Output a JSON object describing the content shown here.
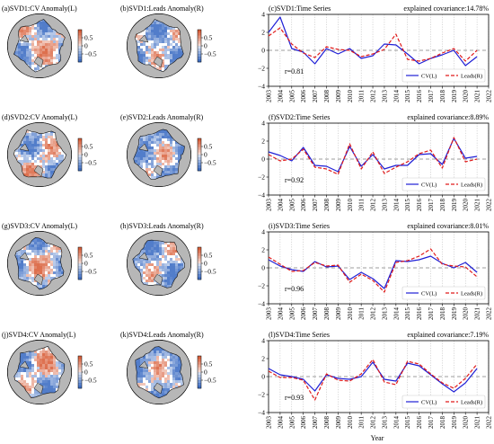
{
  "figure": {
    "xlabel": "Year",
    "colorbar_ticks": [
      "0.5",
      "0",
      "−0.5"
    ],
    "colors": {
      "cv_line": "#1f1fd6",
      "leads_line": "#e01a1a",
      "land": "#b7b7b7",
      "pos": "#d9603b",
      "neg": "#3f6fc4",
      "zero_line": "#7f7f7f"
    }
  },
  "rows": [
    {
      "map_cv_title": "(a)SVD1:CV Anomaly(L)",
      "map_leads_title": "(b)SVD1:Leads Anomaly(R)",
      "ts_title": "(c)SVD1:Time Series",
      "covariance": "explained covariance:14.78%",
      "r_label": "r=0.81"
    },
    {
      "map_cv_title": "(d)SVD2:CV Anomaly(L)",
      "map_leads_title": "(e)SVD2:Leads Anomaly(R)",
      "ts_title": "(f)SVD2:Time Series",
      "covariance": "explained covariance:8.89%",
      "r_label": "r=0.92"
    },
    {
      "map_cv_title": "(g)SVD3:CV Anomaly(L)",
      "map_leads_title": "(h)SVD3:Leads Anomaly(R)",
      "ts_title": "(i)SVD3:Time Series",
      "covariance": "explained covariance:8.01%",
      "r_label": "r=0.96"
    },
    {
      "map_cv_title": "(j)SVD4:CV Anomaly(L)",
      "map_leads_title": "(k)SVD4:Leads Anomaly(R)",
      "ts_title": "(l)SVD4:Time Series",
      "covariance": "explained covariance:7.19%",
      "r_label": "r=0.93"
    }
  ],
  "chart_data": [
    {
      "type": "line",
      "title": "(c)SVD1:Time Series",
      "x": [
        2003,
        2004,
        2005,
        2006,
        2007,
        2008,
        2009,
        2010,
        2011,
        2012,
        2013,
        2014,
        2015,
        2016,
        2017,
        2018,
        2019,
        2020,
        2021
      ],
      "xticks": [
        "2003",
        "2004",
        "2005",
        "2006",
        "2007",
        "2008",
        "2009",
        "2010",
        "2011",
        "2012",
        "2013",
        "2014",
        "2015",
        "2016",
        "2017",
        "2018",
        "2019",
        "2020",
        "2021",
        "2022"
      ],
      "ylim": [
        -4,
        4
      ],
      "yticks": [
        -4,
        -2,
        0,
        2,
        4
      ],
      "xlabel": "",
      "series": [
        {
          "name": "CV(L)",
          "values": [
            2.0,
            3.7,
            0.2,
            -0.2,
            -1.5,
            0.2,
            -0.4,
            0.2,
            -0.9,
            -0.6,
            0.7,
            0.6,
            -0.4,
            -1.5,
            -0.9,
            -0.5,
            0.0,
            -1.7,
            -0.7
          ]
        },
        {
          "name": "Leads(R)",
          "values": [
            1.6,
            2.5,
            0.7,
            -0.3,
            -0.8,
            0.4,
            0.1,
            0.0,
            -0.7,
            -0.4,
            0.1,
            1.8,
            -1.0,
            -1.2,
            -0.9,
            -0.3,
            0.2,
            -1.2,
            0.0
          ]
        }
      ],
      "annotation": "r=0.81",
      "covariance": "explained covariance:14.78%"
    },
    {
      "type": "line",
      "title": "(f)SVD2:Time Series",
      "x": [
        2003,
        2004,
        2005,
        2006,
        2007,
        2008,
        2009,
        2010,
        2011,
        2012,
        2013,
        2014,
        2015,
        2016,
        2017,
        2018,
        2019,
        2020,
        2021
      ],
      "xticks": [
        "2003",
        "2004",
        "2005",
        "2006",
        "2007",
        "2008",
        "2009",
        "2010",
        "2011",
        "2012",
        "2013",
        "2014",
        "2015",
        "2016",
        "2017",
        "2018",
        "2019",
        "2020",
        "2021",
        "2022"
      ],
      "ylim": [
        -4,
        4
      ],
      "yticks": [
        -4,
        -2,
        0,
        2,
        4
      ],
      "xlabel": "",
      "series": [
        {
          "name": "CV(L)",
          "values": [
            0.8,
            0.4,
            -0.2,
            1.3,
            -0.7,
            -0.8,
            -1.4,
            1.4,
            -0.8,
            0.5,
            -1.1,
            -0.7,
            -0.7,
            0.5,
            0.6,
            -0.6,
            2.3,
            0.1,
            0.3
          ]
        },
        {
          "name": "Leads(R)",
          "values": [
            0.5,
            -0.2,
            0.0,
            1.1,
            -0.9,
            -1.1,
            -1.7,
            1.7,
            -1.1,
            0.8,
            -1.6,
            -0.9,
            -0.3,
            0.6,
            1.0,
            -1.0,
            2.4,
            -0.3,
            0.0
          ]
        }
      ],
      "annotation": "r=0.92",
      "covariance": "explained covariance:8.89%"
    },
    {
      "type": "line",
      "title": "(i)SVD3:Time Series",
      "x": [
        2003,
        2004,
        2005,
        2006,
        2007,
        2008,
        2009,
        2010,
        2011,
        2012,
        2013,
        2014,
        2015,
        2016,
        2017,
        2018,
        2019,
        2020,
        2021
      ],
      "xticks": [
        "2003",
        "2004",
        "2005",
        "2006",
        "2007",
        "2008",
        "2009",
        "2010",
        "2011",
        "2012",
        "2013",
        "2014",
        "2015",
        "2016",
        "2017",
        "2018",
        "2019",
        "2020",
        "2021",
        "2022"
      ],
      "ylim": [
        -4,
        4
      ],
      "yticks": [
        -4,
        -2,
        0,
        2,
        4
      ],
      "xlabel": "",
      "series": [
        {
          "name": "CV(L)",
          "values": [
            0.9,
            0.2,
            -0.2,
            -0.4,
            0.7,
            0.1,
            0.2,
            -1.3,
            -0.5,
            -1.2,
            -2.3,
            0.8,
            0.7,
            0.9,
            1.3,
            0.5,
            0.0,
            0.6,
            -0.5
          ]
        },
        {
          "name": "Leads(R)",
          "values": [
            1.2,
            0.4,
            -0.4,
            -0.3,
            0.6,
            0.2,
            0.3,
            -1.6,
            -0.7,
            -1.4,
            -2.7,
            0.6,
            0.8,
            1.3,
            2.1,
            0.4,
            0.2,
            0.1,
            -1.0
          ]
        }
      ],
      "annotation": "r=0.96",
      "covariance": "explained covariance:8.01%"
    },
    {
      "type": "line",
      "title": "(l)SVD4:Time Series",
      "x": [
        2003,
        2004,
        2005,
        2006,
        2007,
        2008,
        2009,
        2010,
        2011,
        2012,
        2013,
        2014,
        2015,
        2016,
        2017,
        2018,
        2019,
        2020,
        2021
      ],
      "xticks": [
        "2003",
        "2004",
        "2005",
        "2006",
        "2007",
        "2008",
        "2009",
        "2010",
        "2011",
        "2012",
        "2013",
        "2014",
        "2015",
        "2016",
        "2017",
        "2018",
        "2019",
        "2020",
        "2021",
        "2022"
      ],
      "ylim": [
        -4,
        4
      ],
      "yticks": [
        -4,
        -2,
        0,
        2,
        4
      ],
      "xlabel": "Year",
      "series": [
        {
          "name": "CV(L)",
          "values": [
            0.9,
            0.2,
            0.0,
            -0.3,
            -1.6,
            0.2,
            -0.2,
            -0.3,
            0.0,
            1.6,
            -0.3,
            -0.5,
            1.5,
            1.2,
            0.2,
            -0.8,
            -1.7,
            -0.7,
            0.9
          ]
        },
        {
          "name": "Leads(R)",
          "values": [
            0.6,
            -0.1,
            -0.1,
            -0.4,
            -2.6,
            0.3,
            -0.4,
            -0.5,
            0.3,
            1.9,
            -0.6,
            -0.9,
            1.7,
            1.4,
            0.3,
            -0.7,
            -1.3,
            -0.2,
            1.4
          ]
        }
      ],
      "annotation": "r=0.93",
      "covariance": "explained covariance:7.19%"
    }
  ]
}
